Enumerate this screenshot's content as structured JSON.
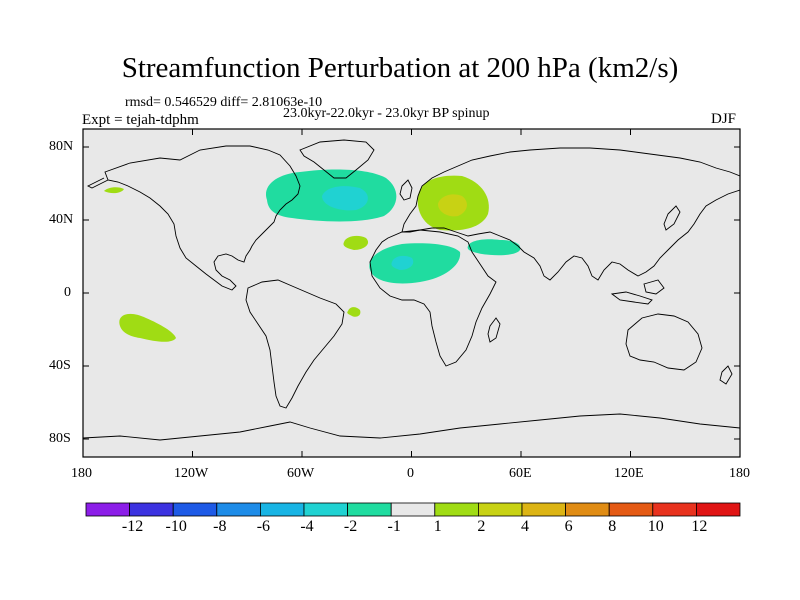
{
  "title": "Streamfunction Perturbation at 200 hPa (km2/s)",
  "stats": "rmsd= 0.546529 diff= 2.81063e-10",
  "experiment": "Expt = tejah-tdphm",
  "period": "23.0kyr-22.0kyr - 23.0kyr BP spinup",
  "season": "DJF",
  "axes": {
    "x_labels": [
      "180",
      "120W",
      "60W",
      "0",
      "60E",
      "120E",
      "180"
    ],
    "y_labels": [
      "80N",
      "40N",
      "0",
      "40S",
      "80S"
    ]
  },
  "colorbar": {
    "labels": [
      "-12",
      "-10",
      "-8",
      "-6",
      "-4",
      "-2",
      "-1",
      "1",
      "2",
      "4",
      "6",
      "8",
      "10",
      "12"
    ],
    "colors": [
      "#8c1ee8",
      "#3c32e0",
      "#1e5ae6",
      "#1e8ce8",
      "#18b4e4",
      "#20d2d2",
      "#20dca0",
      "#e8e8e8",
      "#a0dc14",
      "#c8d214",
      "#dcb414",
      "#e08c14",
      "#e45a14",
      "#e8321e",
      "#e01414"
    ]
  },
  "chart_data": {
    "type": "contour-map",
    "title": "Streamfunction Perturbation at 200 hPa (km2/s)",
    "projection": "cylindrical-equidistant",
    "lon_range": [
      -180,
      180
    ],
    "lat_range": [
      -90,
      90
    ],
    "levels": [
      -12,
      -10,
      -8,
      -6,
      -4,
      -2,
      -1,
      1,
      2,
      4,
      6,
      8,
      10,
      12
    ],
    "anomalies": [
      {
        "region": "north-atlantic",
        "sign": "negative",
        "lon": [
          -80,
          -18
        ],
        "lat": [
          32,
          60
        ],
        "core_lon": -35,
        "core_lat": 48,
        "band": "-1 to -2, core -2 to -4"
      },
      {
        "region": "europe",
        "sign": "positive",
        "lon": [
          2,
          44
        ],
        "lat": [
          30,
          60
        ],
        "core_lon": 22,
        "core_lat": 48,
        "band": "1 to 2, core 2 to 4"
      },
      {
        "region": "north-africa",
        "sign": "negative",
        "lon": [
          -22,
          28
        ],
        "lat": [
          7,
          30
        ],
        "core_lon": -5,
        "core_lat": 18,
        "band": "-1 to -2, core -2 to -4"
      },
      {
        "region": "arabia",
        "sign": "negative",
        "lon": [
          32,
          62
        ],
        "lat": [
          24,
          32
        ],
        "band": "-1 to -2"
      },
      {
        "region": "east-pacific-south",
        "sign": "positive",
        "lon": [
          -163,
          -135
        ],
        "lat": [
          -27,
          -10
        ],
        "band": "1 to 2"
      },
      {
        "region": "mid-atlantic",
        "sign": "positive",
        "lon": [
          -38,
          -23
        ],
        "lat": [
          26,
          34
        ],
        "band": "1 to 2"
      },
      {
        "region": "north-pacific",
        "sign": "positive",
        "lon": [
          -165,
          -150
        ],
        "lat": [
          55,
          58
        ],
        "band": "1 to 2"
      },
      {
        "region": "equatorial-atlantic",
        "sign": "positive",
        "lon": [
          -22,
          -15
        ],
        "lat": [
          -12,
          -7
        ],
        "band": "1 to 2"
      }
    ]
  }
}
